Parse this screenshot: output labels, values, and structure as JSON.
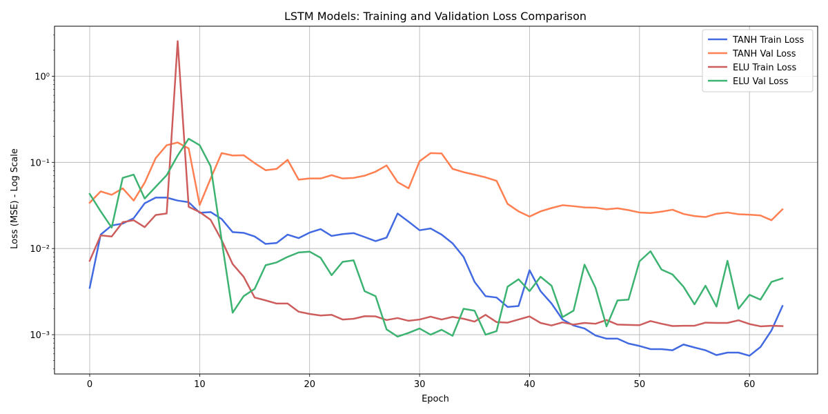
{
  "chart_data": {
    "type": "line",
    "title": "LSTM Models: Training and Validation Loss Comparison",
    "xlabel": "Epoch",
    "ylabel": "Loss (MSE) - Log Scale",
    "yscale": "log",
    "xlim": [
      -3.2,
      66.2
    ],
    "ylim": [
      0.00035,
      3.8
    ],
    "grid": true,
    "legend_position": "top-right",
    "x_ticks": [
      0,
      10,
      20,
      30,
      40,
      50,
      60
    ],
    "x_tick_labels": [
      "0",
      "10",
      "20",
      "30",
      "40",
      "50",
      "60"
    ],
    "y_ticks": [
      0.001,
      0.01,
      0.1,
      1
    ],
    "y_tick_labels": [
      "10⁻³",
      "10⁻²",
      "10⁻¹",
      "10⁰"
    ],
    "x": [
      0,
      1,
      2,
      3,
      4,
      5,
      6,
      7,
      8,
      9,
      10,
      11,
      12,
      13,
      14,
      15,
      16,
      17,
      18,
      19,
      20,
      21,
      22,
      23,
      24,
      25,
      26,
      27,
      28,
      29,
      30,
      31,
      32,
      33,
      34,
      35,
      36,
      37,
      38,
      39,
      40,
      41,
      42,
      43,
      44,
      45,
      46,
      47,
      48,
      49,
      50,
      51,
      52,
      53,
      54,
      55,
      56,
      57,
      58,
      59,
      60,
      61,
      62,
      63
    ],
    "series": [
      {
        "name": "TANH Train Loss",
        "color": "#4169e1",
        "values": [
          0.0035,
          0.0145,
          0.0185,
          0.0195,
          0.0225,
          0.0335,
          0.039,
          0.039,
          0.036,
          0.0345,
          0.026,
          0.0265,
          0.022,
          0.0155,
          0.0152,
          0.0138,
          0.0113,
          0.0116,
          0.0145,
          0.0132,
          0.0153,
          0.0168,
          0.014,
          0.0147,
          0.0151,
          0.0136,
          0.0122,
          0.0134,
          0.0255,
          0.0205,
          0.0163,
          0.0171,
          0.0145,
          0.0115,
          0.008,
          0.0041,
          0.0028,
          0.0027,
          0.0021,
          0.00215,
          0.0056,
          0.0032,
          0.0023,
          0.0015,
          0.00128,
          0.00118,
          0.00098,
          0.0009,
          0.0009,
          0.00079,
          0.00074,
          0.00068,
          0.00068,
          0.00066,
          0.00077,
          0.00071,
          0.00066,
          0.00058,
          0.00062,
          0.00062,
          0.00057,
          0.00072,
          0.00112,
          0.00215
        ]
      },
      {
        "name": "TANH Val Loss",
        "color": "#ff7f50",
        "values": [
          0.034,
          0.046,
          0.042,
          0.05,
          0.036,
          0.058,
          0.112,
          0.158,
          0.17,
          0.145,
          0.032,
          0.065,
          0.128,
          0.12,
          0.121,
          0.098,
          0.081,
          0.084,
          0.107,
          0.063,
          0.065,
          0.065,
          0.071,
          0.065,
          0.066,
          0.07,
          0.078,
          0.092,
          0.059,
          0.05,
          0.103,
          0.128,
          0.127,
          0.084,
          0.077,
          0.072,
          0.067,
          0.061,
          0.033,
          0.027,
          0.0235,
          0.027,
          0.0295,
          0.0318,
          0.031,
          0.03,
          0.0298,
          0.0285,
          0.0293,
          0.0279,
          0.0262,
          0.0258,
          0.0268,
          0.0282,
          0.0252,
          0.0238,
          0.0232,
          0.0253,
          0.0262,
          0.025,
          0.0247,
          0.0242,
          0.0213,
          0.0285
        ]
      },
      {
        "name": "ELU Train Loss",
        "color": "#cd5c5c",
        "values": [
          0.0072,
          0.0142,
          0.0138,
          0.0202,
          0.0213,
          0.0177,
          0.0245,
          0.0255,
          2.55,
          0.0305,
          0.0265,
          0.0215,
          0.0125,
          0.0066,
          0.0047,
          0.0027,
          0.0025,
          0.0023,
          0.0023,
          0.00185,
          0.00174,
          0.00167,
          0.0017,
          0.0015,
          0.00153,
          0.00164,
          0.00163,
          0.00148,
          0.00156,
          0.00145,
          0.0015,
          0.00162,
          0.0015,
          0.00161,
          0.00153,
          0.00142,
          0.0017,
          0.0014,
          0.00138,
          0.0015,
          0.00163,
          0.00137,
          0.00128,
          0.00139,
          0.00131,
          0.00137,
          0.00134,
          0.00148,
          0.00131,
          0.0013,
          0.00129,
          0.00144,
          0.00134,
          0.00126,
          0.00127,
          0.00127,
          0.00138,
          0.00137,
          0.00137,
          0.00147,
          0.00133,
          0.00125,
          0.00127,
          0.00126
        ]
      },
      {
        "name": "ELU Val Loss",
        "color": "#3cb371",
        "values": [
          0.043,
          0.027,
          0.0175,
          0.066,
          0.072,
          0.038,
          0.052,
          0.071,
          0.12,
          0.188,
          0.158,
          0.09,
          0.0125,
          0.0018,
          0.0028,
          0.0034,
          0.0064,
          0.0069,
          0.008,
          0.009,
          0.0092,
          0.0078,
          0.0049,
          0.007,
          0.0073,
          0.0032,
          0.0028,
          0.00115,
          0.00095,
          0.00105,
          0.00118,
          0.001,
          0.00114,
          0.00097,
          0.002,
          0.0019,
          0.001,
          0.0011,
          0.0036,
          0.0044,
          0.0032,
          0.0047,
          0.0037,
          0.0016,
          0.0019,
          0.0065,
          0.0035,
          0.00125,
          0.0025,
          0.00255,
          0.0071,
          0.0093,
          0.0057,
          0.005,
          0.0036,
          0.00225,
          0.0037,
          0.00212,
          0.0072,
          0.002,
          0.0029,
          0.00255,
          0.0041,
          0.0045
        ]
      }
    ]
  }
}
